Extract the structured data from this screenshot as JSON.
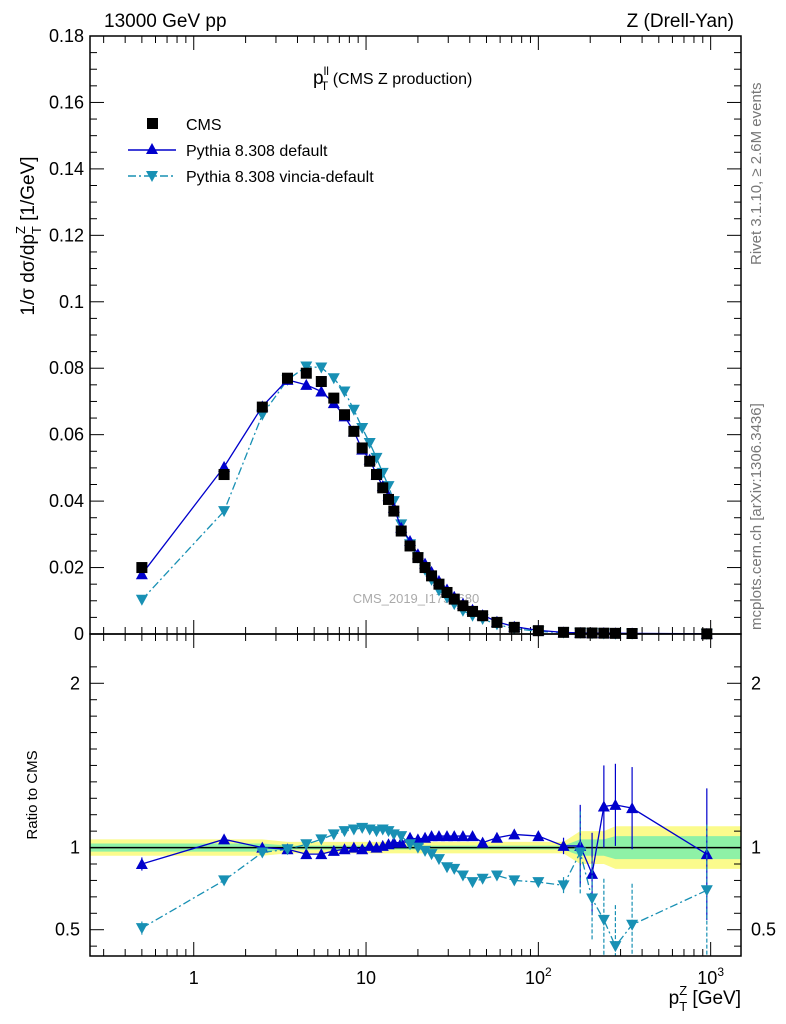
{
  "header": {
    "left": "13000 GeV pp",
    "right": "Z (Drell-Yan)"
  },
  "side_notes": {
    "rivet": "Rivet 3.1.10, ≥ 2.6M events",
    "mcplots": "mcplots.cern.ch [arXiv:1306.3436]"
  },
  "watermark": "CMS_2019_I1753680",
  "chart_data": [
    {
      "type": "scatter",
      "panel": "main",
      "title": "p_T^ll (CMS Z production)",
      "title_parts": {
        "main": "p",
        "sup": "ll",
        "sub": "T",
        "rest": " (CMS Z production)"
      },
      "ylabel": "1/σ dσ/dp_T^Z [1/GeV]",
      "ylabel_parts": {
        "pre": "1/σ dσ/dp",
        "sup": "Z",
        "sub": "T",
        "rest": " [1/GeV]"
      },
      "x_scale": "log",
      "xlim": [
        0.25,
        1500
      ],
      "ylim": [
        0,
        0.18
      ],
      "yticks": [
        {
          "v": 0,
          "label": "0"
        },
        {
          "v": 0.02,
          "label": "0.02"
        },
        {
          "v": 0.04,
          "label": "0.04"
        },
        {
          "v": 0.06,
          "label": "0.06"
        },
        {
          "v": 0.08,
          "label": "0.08"
        },
        {
          "v": 0.1,
          "label": "0.1"
        },
        {
          "v": 0.12,
          "label": "0.12"
        },
        {
          "v": 0.14,
          "label": "0.14"
        },
        {
          "v": 0.16,
          "label": "0.16"
        },
        {
          "v": 0.18,
          "label": "0.18"
        }
      ],
      "legend_position": "top-left",
      "x": [
        0.5,
        1.5,
        2.5,
        3.5,
        4.5,
        5.5,
        6.5,
        7.5,
        8.5,
        9.5,
        10.5,
        11.5,
        12.5,
        13.5,
        14.5,
        16,
        18,
        20,
        22,
        24,
        26.5,
        29.5,
        32.5,
        36.5,
        41.5,
        47.5,
        57.5,
        72.5,
        100,
        140,
        175,
        205,
        240,
        280,
        350,
        950
      ],
      "series": [
        {
          "name": "CMS",
          "color": "#000000",
          "marker": "square",
          "values": [
            0.02,
            0.048,
            0.0683,
            0.077,
            0.0785,
            0.076,
            0.071,
            0.066,
            0.061,
            0.056,
            0.052,
            0.048,
            0.044,
            0.0405,
            0.037,
            0.031,
            0.0265,
            0.023,
            0.02,
            0.0175,
            0.015,
            0.0125,
            0.0105,
            0.0085,
            0.0068,
            0.0055,
            0.0035,
            0.002,
            0.001,
            0.0005,
            0.00035,
            0.0003,
            0.00025,
            0.0002,
            0.00015,
            5e-05
          ]
        },
        {
          "name": "Pythia 8.308 default",
          "color": "#0000cc",
          "marker": "triangle-up",
          "line": "solid",
          "values": [
            0.018,
            0.0503,
            0.0685,
            0.0765,
            0.075,
            0.073,
            0.0695,
            0.0655,
            0.061,
            0.0555,
            0.0525,
            0.048,
            0.0445,
            0.0415,
            0.038,
            0.032,
            0.028,
            0.024,
            0.0212,
            0.0187,
            0.016,
            0.0134,
            0.0112,
            0.0091,
            0.0073,
            0.0057,
            0.0037,
            0.0022,
            0.0011,
            0.0005,
            0.00035,
            0.00025,
            0.0003,
            0.00024,
            0.00018,
            5e-05
          ]
        },
        {
          "name": "Pythia 8.308 vincia-default",
          "color": "#1890b4",
          "marker": "triangle-down",
          "line": "dashdot",
          "values": [
            0.0103,
            0.037,
            0.066,
            0.0765,
            0.0805,
            0.0802,
            0.077,
            0.073,
            0.0675,
            0.062,
            0.0575,
            0.053,
            0.0485,
            0.0445,
            0.04,
            0.033,
            0.027,
            0.023,
            0.0193,
            0.0163,
            0.0131,
            0.011,
            0.009,
            0.007,
            0.0055,
            0.0045,
            0.0029,
            0.0016,
            0.0008,
            0.0004,
            0.00034,
            0.00021,
            0.00014,
            8e-05,
            8e-05,
            4e-05
          ]
        }
      ]
    },
    {
      "type": "scatter",
      "panel": "ratio",
      "ylabel": "Ratio to CMS",
      "xlabel": "p_T^Z [GeV]",
      "xlabel_parts": {
        "main": "p",
        "sup": "Z",
        "sub": "T",
        "rest": " [GeV]"
      },
      "x_scale": "log",
      "xlim": [
        0.25,
        1500
      ],
      "ylim": [
        0.34,
        2.3
      ],
      "yticks": [
        {
          "v": 0.5,
          "label": "0.5"
        },
        {
          "v": 1,
          "label": "1"
        },
        {
          "v": 2,
          "label": "2"
        }
      ],
      "xticks": [
        {
          "v": 1,
          "label": "1"
        },
        {
          "v": 10,
          "label": "10"
        },
        {
          "v": 100,
          "label": "10",
          "sup": "2"
        },
        {
          "v": 1000,
          "label": "10",
          "sup": "3"
        }
      ],
      "band_colors": {
        "inner": "#8ef1a6",
        "outer": "#fbfb8c"
      },
      "x": [
        0.5,
        1.5,
        2.5,
        3.5,
        4.5,
        5.5,
        6.5,
        7.5,
        8.5,
        9.5,
        10.5,
        11.5,
        12.5,
        13.5,
        14.5,
        16,
        18,
        20,
        22,
        24,
        26.5,
        29.5,
        32.5,
        36.5,
        41.5,
        47.5,
        57.5,
        72.5,
        100,
        140,
        175,
        205,
        240,
        280,
        350,
        950
      ],
      "series": [
        {
          "name": "Pythia 8.308 default",
          "color": "#0000cc",
          "marker": "triangle-up",
          "line": "solid",
          "values": [
            0.9,
            1.05,
            1.0,
            0.99,
            0.96,
            0.96,
            0.98,
            0.99,
            1.0,
            0.99,
            1.01,
            1.0,
            1.01,
            1.02,
            1.03,
            1.03,
            1.06,
            1.05,
            1.06,
            1.07,
            1.07,
            1.07,
            1.07,
            1.07,
            1.07,
            1.03,
            1.06,
            1.08,
            1.07,
            1.01,
            1.01,
            0.84,
            1.25,
            1.26,
            1.24,
            0.96
          ]
        },
        {
          "name": "Pythia 8.308 vincia-default",
          "color": "#1890b4",
          "marker": "triangle-down",
          "line": "dashdot",
          "values": [
            0.51,
            0.8,
            0.97,
            0.99,
            1.02,
            1.05,
            1.08,
            1.1,
            1.11,
            1.12,
            1.11,
            1.1,
            1.11,
            1.1,
            1.08,
            1.07,
            1.02,
            1.0,
            0.98,
            0.96,
            0.93,
            0.88,
            0.87,
            0.83,
            0.79,
            0.81,
            0.83,
            0.8,
            0.79,
            0.77,
            0.97,
            0.69,
            0.56,
            0.4,
            0.53,
            0.74
          ]
        }
      ]
    }
  ]
}
